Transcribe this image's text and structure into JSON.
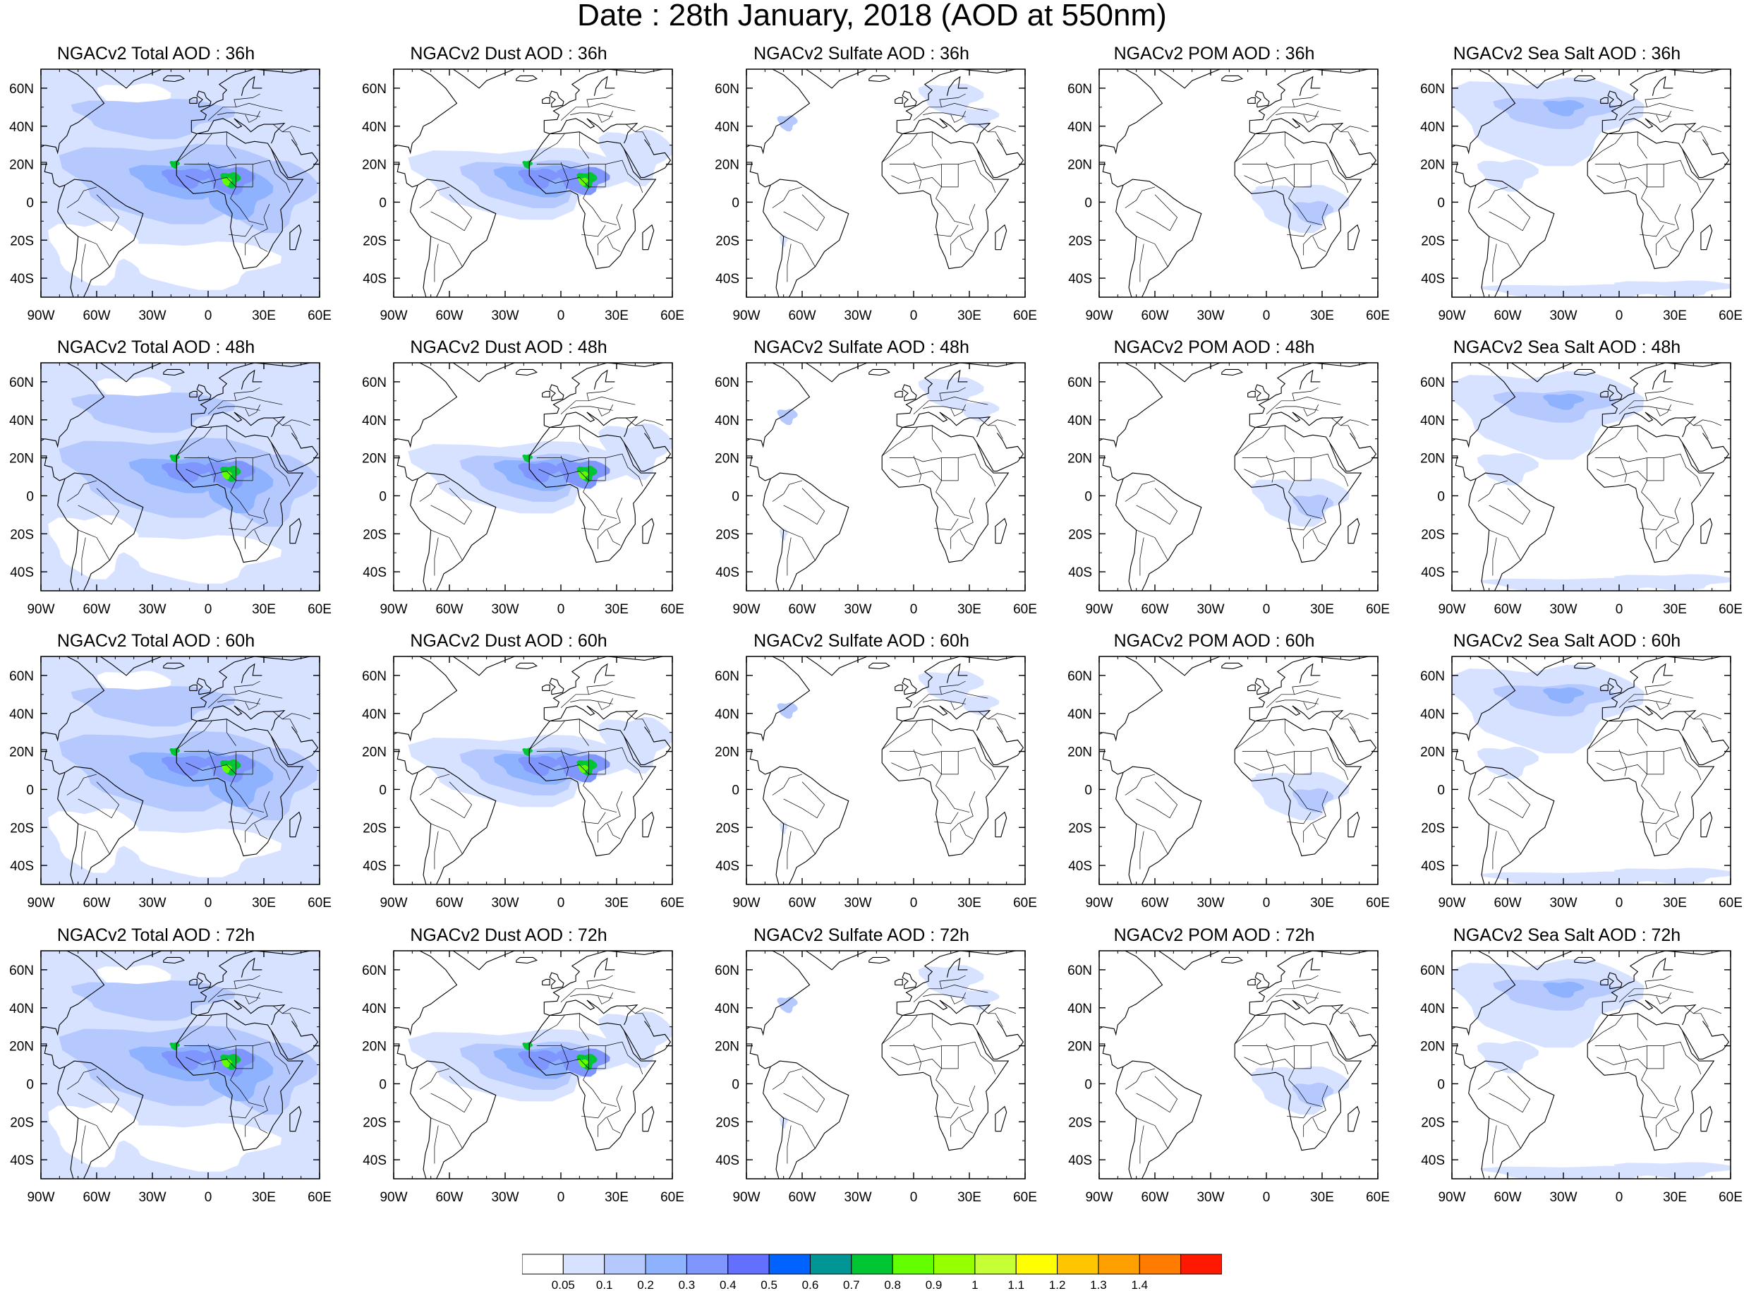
{
  "title": "Date : 28th January, 2018 (AOD at 550nm)",
  "map": {
    "lon_range": [
      -90,
      60
    ],
    "lat_range": [
      -50,
      70
    ],
    "lon_ticks": [
      {
        "value": -90,
        "label": "90W"
      },
      {
        "value": -60,
        "label": "60W"
      },
      {
        "value": -30,
        "label": "30W"
      },
      {
        "value": 0,
        "label": "0"
      },
      {
        "value": 30,
        "label": "30E"
      },
      {
        "value": 60,
        "label": "60E"
      }
    ],
    "lat_ticks": [
      {
        "value": 60,
        "label": "60N"
      },
      {
        "value": 40,
        "label": "40N"
      },
      {
        "value": 20,
        "label": "20N"
      },
      {
        "value": 0,
        "label": "0"
      },
      {
        "value": -20,
        "label": "20S"
      },
      {
        "value": -40,
        "label": "40S"
      }
    ]
  },
  "panels": [
    {
      "title": "NGACv2 Total AOD : 36h",
      "species": "total"
    },
    {
      "title": "NGACv2 Dust AOD : 36h",
      "species": "dust"
    },
    {
      "title": "NGACv2 Sulfate AOD : 36h",
      "species": "sulfate"
    },
    {
      "title": "NGACv2 POM AOD : 36h",
      "species": "pom"
    },
    {
      "title": "NGACv2 Sea Salt AOD : 36h",
      "species": "seasalt"
    },
    {
      "title": "NGACv2 Total AOD : 48h",
      "species": "total"
    },
    {
      "title": "NGACv2 Dust AOD : 48h",
      "species": "dust"
    },
    {
      "title": "NGACv2 Sulfate AOD : 48h",
      "species": "sulfate"
    },
    {
      "title": "NGACv2 POM AOD : 48h",
      "species": "pom"
    },
    {
      "title": "NGACv2 Sea Salt AOD : 48h",
      "species": "seasalt"
    },
    {
      "title": "NGACv2 Total AOD : 60h",
      "species": "total"
    },
    {
      "title": "NGACv2 Dust AOD : 60h",
      "species": "dust"
    },
    {
      "title": "NGACv2 Sulfate AOD : 60h",
      "species": "sulfate"
    },
    {
      "title": "NGACv2 POM AOD : 60h",
      "species": "pom"
    },
    {
      "title": "NGACv2 Sea Salt AOD : 60h",
      "species": "seasalt"
    },
    {
      "title": "NGACv2 Total AOD : 72h",
      "species": "total"
    },
    {
      "title": "NGACv2 Dust AOD : 72h",
      "species": "dust"
    },
    {
      "title": "NGACv2 Sulfate AOD : 72h",
      "species": "sulfate"
    },
    {
      "title": "NGACv2 POM AOD : 72h",
      "species": "pom"
    },
    {
      "title": "NGACv2 Sea Salt  AOD : 72h",
      "species": "seasalt"
    }
  ],
  "colorbar": {
    "labels": [
      "0.05",
      "0.1",
      "0.2",
      "0.3",
      "0.4",
      "0.5",
      "0.6",
      "0.7",
      "0.8",
      "0.9",
      "1",
      "1.1",
      "1.2",
      "1.3",
      "1.4"
    ],
    "colors": [
      "#ffffff",
      "#d6e2ff",
      "#b5c9ff",
      "#8fb2ff",
      "#7f96ff",
      "#6370ff",
      "#0063ff",
      "#009696",
      "#00c633",
      "#63ff00",
      "#96ff00",
      "#c6ff33",
      "#ffff00",
      "#ffc600",
      "#ffa000",
      "#ff7c00",
      "#ff1900"
    ]
  }
}
